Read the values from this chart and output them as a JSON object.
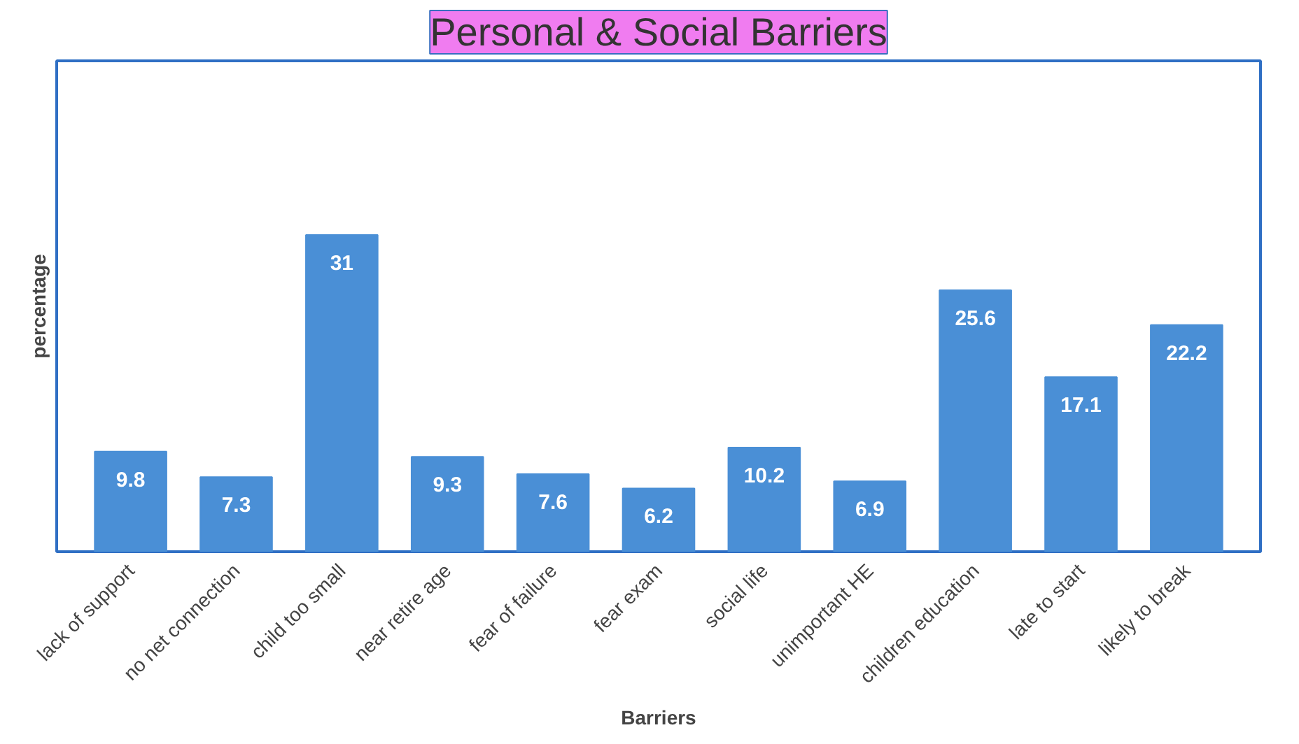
{
  "chart_data": {
    "type": "bar",
    "title": "Personal & Social Barriers",
    "xlabel": "Barriers",
    "ylabel": "percentage",
    "categories": [
      "lack of support",
      "no net connection",
      "child too small",
      "near retire age",
      "fear of failure",
      "fear exam",
      "social life",
      "unimportant HE",
      "children education",
      "late to start",
      "likely to break"
    ],
    "values": [
      9.8,
      7.3,
      31,
      9.3,
      7.6,
      6.2,
      10.2,
      6.9,
      25.6,
      17.1,
      22.2
    ],
    "color": "#4a8fd6",
    "data_labels": true,
    "tick_labels": "x",
    "grid": false
  }
}
